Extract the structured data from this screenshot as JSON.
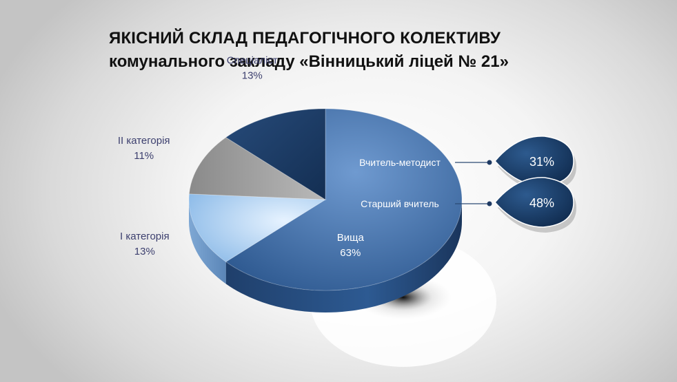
{
  "header": {
    "title": "ЯКІСНИЙ СКЛАД ПЕДАГОГІЧНОГО КОЛЕКТИВУ",
    "subtitle": "комунального закладу «Вінницький ліцей № 21»"
  },
  "chart_data": {
    "type": "pie",
    "style": "3d",
    "slices": [
      {
        "name": "Вища",
        "value": 63,
        "label": "63%",
        "color": "#3f6ea8"
      },
      {
        "name": "І категорія",
        "value": 13,
        "label": "13%",
        "color": "#a9cdf2"
      },
      {
        "name": "ІІ категорія",
        "value": 11,
        "label": "11%",
        "color": "#a0a0a0"
      },
      {
        "name": "Спеціаліст",
        "value": 13,
        "label": "13%",
        "color": "#1c3d66"
      }
    ],
    "callouts": [
      {
        "name": "Вчитель-методист",
        "value": 31,
        "label": "31%"
      },
      {
        "name": "Старший вчитель",
        "value": 48,
        "label": "48%"
      }
    ]
  }
}
